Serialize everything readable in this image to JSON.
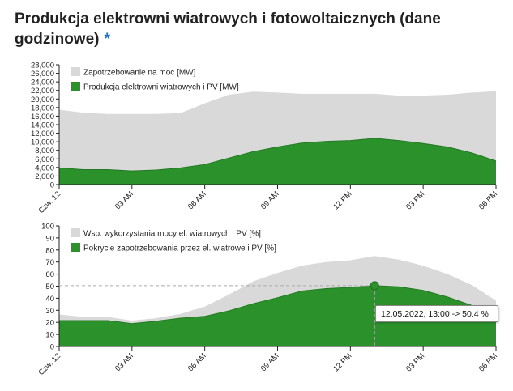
{
  "title": "Produkcja elektrowni wiatrowych i fotowoltaicznych (dane godzinowe)",
  "title_link": "*",
  "tooltip": "12.05.2022, 13:00 -> 50.4 %",
  "colors": {
    "grey_area": "#d9d9d9",
    "green_area": "#2b912b",
    "green_line": "#237a23",
    "grid": "#cccccc"
  },
  "chart_data": [
    {
      "type": "area",
      "x_tick_labels": [
        "Czw. 12",
        "03 AM",
        "06 AM",
        "09 AM",
        "12 PM",
        "03 PM",
        "06 PM"
      ],
      "x_hours": [
        0,
        1,
        2,
        3,
        4,
        5,
        6,
        7,
        8,
        9,
        10,
        11,
        12,
        13,
        14,
        15,
        16,
        17,
        18
      ],
      "ylim": [
        0,
        28000
      ],
      "y_ticks": [
        0,
        2000,
        4000,
        6000,
        8000,
        10000,
        12000,
        14000,
        16000,
        18000,
        20000,
        22000,
        24000,
        26000,
        28000
      ],
      "y_tick_labels": [
        "0",
        "2,000",
        "4,000",
        "6,000",
        "8,000",
        "10,000",
        "12,000",
        "14,000",
        "16,000",
        "18,000",
        "20,000",
        "22,000",
        "24,000",
        "26,000",
        "28,000"
      ],
      "legend_placement": "top-left",
      "series": [
        {
          "name": "Zapotrzebowanie na moc [MW]",
          "color": "#d9d9d9",
          "values": [
            17500,
            16800,
            16500,
            16500,
            16500,
            16700,
            19000,
            21000,
            21700,
            21500,
            21200,
            21200,
            21200,
            21200,
            20800,
            20800,
            21000,
            21500,
            21800
          ]
        },
        {
          "name": "Produkcja elektrowni wiatrowych i PV [MW]",
          "color": "#2b912b",
          "values": [
            3900,
            3500,
            3500,
            3200,
            3400,
            3900,
            4700,
            6200,
            7700,
            8800,
            9700,
            10100,
            10300,
            10800,
            10300,
            9600,
            8800,
            7400,
            5500
          ]
        }
      ]
    },
    {
      "type": "area",
      "x_tick_labels": [
        "Czw. 12",
        "03 AM",
        "06 AM",
        "09 AM",
        "12 PM",
        "03 PM",
        "06 PM"
      ],
      "x_hours": [
        0,
        1,
        2,
        3,
        4,
        5,
        6,
        7,
        8,
        9,
        10,
        11,
        12,
        13,
        14,
        15,
        16,
        17,
        18
      ],
      "ylim": [
        0,
        100
      ],
      "y_ticks": [
        0,
        10,
        20,
        30,
        40,
        50,
        60,
        70,
        80,
        90,
        100
      ],
      "y_tick_labels": [
        "0",
        "10",
        "20",
        "30",
        "40",
        "50",
        "60",
        "70",
        "80",
        "90",
        "100"
      ],
      "legend_placement": "top-left",
      "series": [
        {
          "name": "Wsp. wykorzystania mocy el. wiatrowych i PV [%]",
          "color": "#d9d9d9",
          "values": [
            26.5,
            24.5,
            24.5,
            21.5,
            23.5,
            27,
            33,
            43,
            54,
            61,
            67,
            70,
            71.5,
            75,
            72,
            67,
            60,
            51,
            38
          ]
        },
        {
          "name": "Pokrycie zapotrzebowania przez el. wiatrowe i PV [%]",
          "color": "#2b912b",
          "values": [
            21.5,
            21.5,
            21.5,
            19,
            21,
            23.5,
            25,
            29.5,
            35.5,
            40.5,
            46,
            48,
            49,
            50.4,
            49.5,
            46.5,
            41,
            34,
            25
          ]
        }
      ],
      "highlight": {
        "x_hour": 13,
        "value": 50.4
      }
    }
  ]
}
